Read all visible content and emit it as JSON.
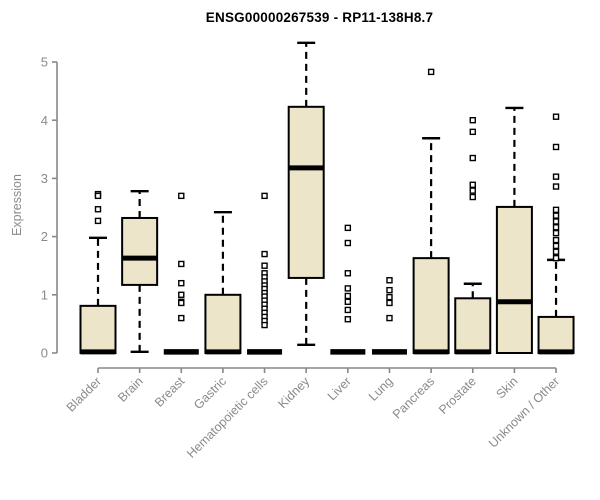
{
  "title": "ENSG00000267539 - RP11-138H8.7",
  "chart_data": {
    "type": "boxplot",
    "title": "ENSG00000267539 - RP11-138H8.7",
    "xlabel": "",
    "ylabel": "Expression",
    "ylim": [
      0,
      5.4
    ],
    "yticks": [
      0,
      1,
      2,
      3,
      4,
      5
    ],
    "grid": false,
    "legend": "none",
    "categories": [
      "Bladder",
      "Brain",
      "Breast",
      "Gastric",
      "Hematopoietic cells",
      "Kidney",
      "Liver",
      "Lung",
      "Pancreas",
      "Prostate",
      "Skin",
      "Unknown / Other"
    ],
    "series": [
      {
        "label": "Bladder",
        "q1": 0,
        "median": 0.02,
        "q3": 0.81,
        "whisker_low": 0,
        "whisker_high": 1.98,
        "outliers": [
          2.73,
          2.7,
          2.47,
          2.27
        ]
      },
      {
        "label": "Brain",
        "q1": 1.17,
        "median": 1.63,
        "q3": 2.32,
        "whisker_low": 0.02,
        "whisker_high": 2.78,
        "outliers": []
      },
      {
        "label": "Breast",
        "q1": 0,
        "median": 0.02,
        "q3": 0,
        "whisker_low": 0,
        "whisker_high": 0,
        "outliers": [
          2.7,
          1.53,
          1.2,
          1.0,
          0.88,
          0.86,
          0.6
        ]
      },
      {
        "label": "Gastric",
        "q1": 0,
        "median": 0.02,
        "q3": 1.0,
        "whisker_low": 0,
        "whisker_high": 2.42,
        "outliers": []
      },
      {
        "label": "Hematopoietic cells",
        "q1": 0,
        "median": 0.02,
        "q3": 0,
        "whisker_low": 0,
        "whisker_high": 0,
        "outliers": [
          2.7,
          1.7,
          1.5,
          1.37,
          1.3,
          1.23,
          1.16,
          1.1,
          1.03,
          0.97,
          0.9,
          0.83,
          0.76,
          0.69,
          0.62,
          0.55,
          0.48
        ]
      },
      {
        "label": "Kidney",
        "q1": 1.29,
        "median": 3.18,
        "q3": 4.23,
        "whisker_low": 0.14,
        "whisker_high": 5.33,
        "outliers": []
      },
      {
        "label": "Liver",
        "q1": 0,
        "median": 0.02,
        "q3": 0,
        "whisker_low": 0,
        "whisker_high": 0,
        "outliers": [
          2.15,
          1.89,
          1.37,
          1.11,
          0.98,
          0.88,
          0.74,
          0.58
        ]
      },
      {
        "label": "Lung",
        "q1": 0,
        "median": 0.02,
        "q3": 0,
        "whisker_low": 0,
        "whisker_high": 0,
        "outliers": [
          1.25,
          1.08,
          0.96,
          0.86,
          0.6
        ]
      },
      {
        "label": "Pancreas",
        "q1": 0,
        "median": 0.02,
        "q3": 1.63,
        "whisker_low": 0,
        "whisker_high": 3.69,
        "outliers": [
          4.83
        ]
      },
      {
        "label": "Prostate",
        "q1": 0,
        "median": 0.02,
        "q3": 0.94,
        "whisker_low": 0,
        "whisker_high": 1.19,
        "outliers": [
          4.0,
          3.8,
          3.35,
          2.89,
          2.79,
          2.68
        ]
      },
      {
        "label": "Skin",
        "q1": 0,
        "median": 0.88,
        "q3": 2.51,
        "whisker_low": 0,
        "whisker_high": 4.21,
        "outliers": []
      },
      {
        "label": "Unknown / Other",
        "q1": 0,
        "median": 0.02,
        "q3": 0.62,
        "whisker_low": 0,
        "whisker_high": 1.6,
        "outliers": [
          4.06,
          3.54,
          3.03,
          2.86,
          2.46,
          2.36,
          2.26,
          2.16,
          2.06,
          1.94,
          1.84,
          1.74,
          1.63
        ]
      }
    ],
    "colors": {
      "background": "#ffffff",
      "box_fill": "#ece5c9",
      "box_stroke": "#000000",
      "median": "#000000",
      "whisker": "#000000",
      "outlier_stroke": "#000000",
      "outlier_fill": "#ffffff",
      "axis": "#888888",
      "tick_label": "#8a8a8a",
      "title": "#000000"
    }
  }
}
